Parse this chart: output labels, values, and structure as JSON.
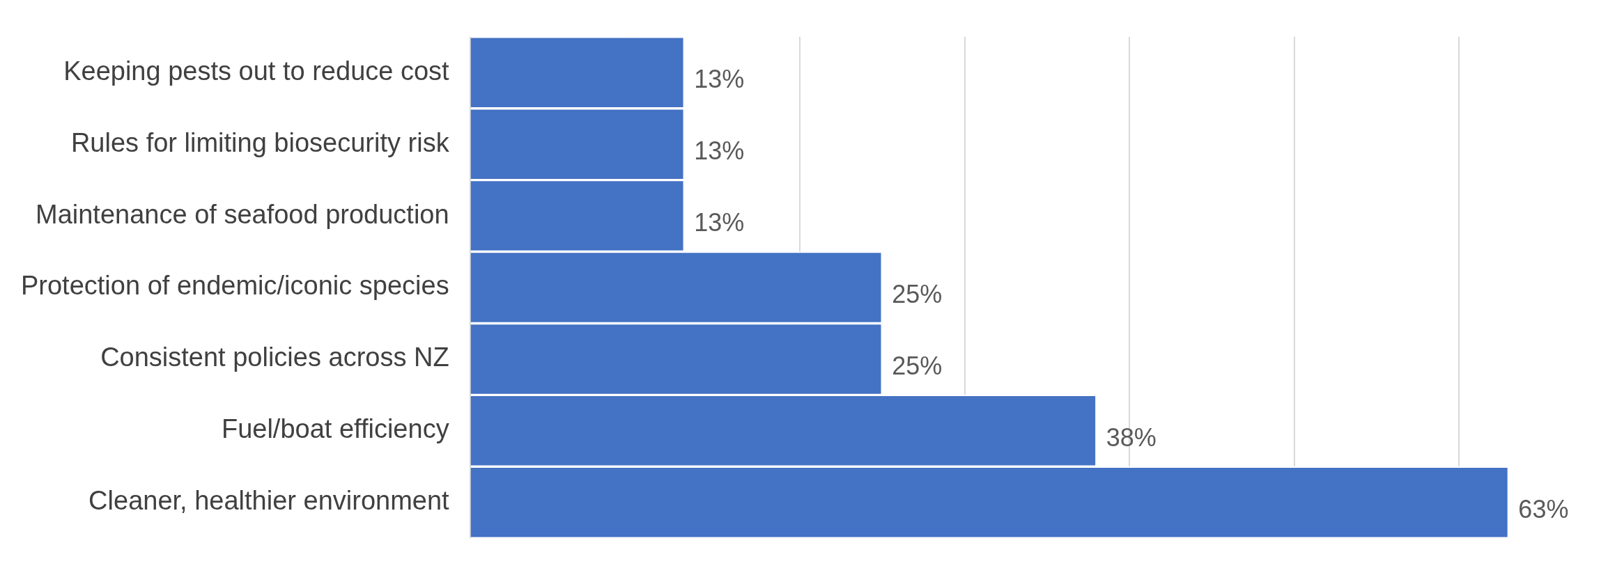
{
  "chart_data": {
    "type": "bar",
    "orientation": "horizontal",
    "categories": [
      "Keeping pests out to reduce cost",
      "Rules for limiting biosecurity risk",
      "Maintenance of seafood production",
      "Protection of endemic/iconic species",
      "Consistent policies across NZ",
      "Fuel/boat efficiency",
      "Cleaner, healthier environment"
    ],
    "values": [
      13,
      13,
      13,
      25,
      25,
      38,
      63
    ],
    "value_labels": [
      "13%",
      "13%",
      "13%",
      "25%",
      "25%",
      "38%",
      "63%"
    ],
    "color": "#4472c4",
    "xticks": [
      {
        "value": 0,
        "label": null
      },
      {
        "value": 10,
        "label": null
      },
      {
        "value": 20,
        "label": null
      },
      {
        "value": 30,
        "label": null
      },
      {
        "value": 40,
        "label": null
      },
      {
        "value": 50,
        "label": null
      },
      {
        "value": 60,
        "label": null
      }
    ],
    "tick_labels": "y",
    "grid": "x",
    "legend": false
  }
}
